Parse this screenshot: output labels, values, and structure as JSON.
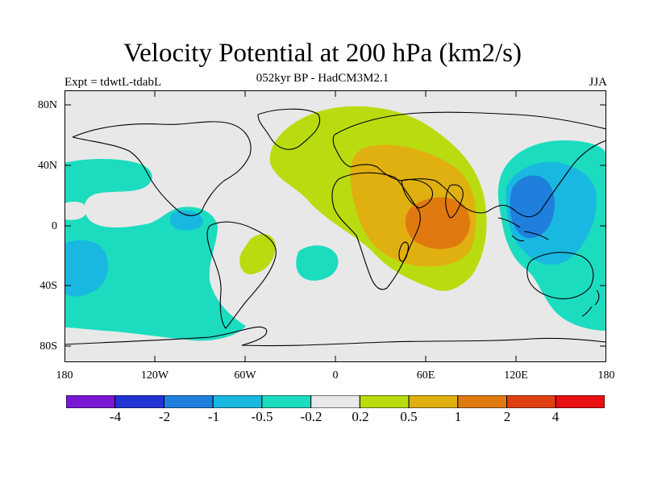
{
  "title": "Velocity Potential at 200 hPa (km2/s)",
  "subtitle": "052kyr BP - HadCM3M2.1",
  "experiment": "Expt = tdwtL-tdabL",
  "season": "JJA",
  "lat_ticks": [
    "80N",
    "40N",
    "0",
    "40S",
    "80S"
  ],
  "lon_ticks": [
    "180",
    "120W",
    "60W",
    "0",
    "60E",
    "120E",
    "180"
  ],
  "colorbar": {
    "colors": [
      "#7a18d6",
      "#2233d4",
      "#1f7fdc",
      "#18b8e0",
      "#1cdcc0",
      "#e8e8e8",
      "#b8dc10",
      "#e0b010",
      "#e07a10",
      "#e04010",
      "#e81010"
    ],
    "labels": [
      "-4",
      "-2",
      "-1",
      "-0.5",
      "-0.2",
      "0.2",
      "0.5",
      "1",
      "2",
      "4"
    ]
  },
  "colors": {
    "background_field": "#e8e8e8",
    "neg_weak": "#1cdcc0",
    "neg_mid": "#18b8e0",
    "neg_strong": "#1f7fdc",
    "pos_weak": "#b8dc10",
    "pos_mid": "#e0b010",
    "pos_strong": "#e07a10"
  }
}
